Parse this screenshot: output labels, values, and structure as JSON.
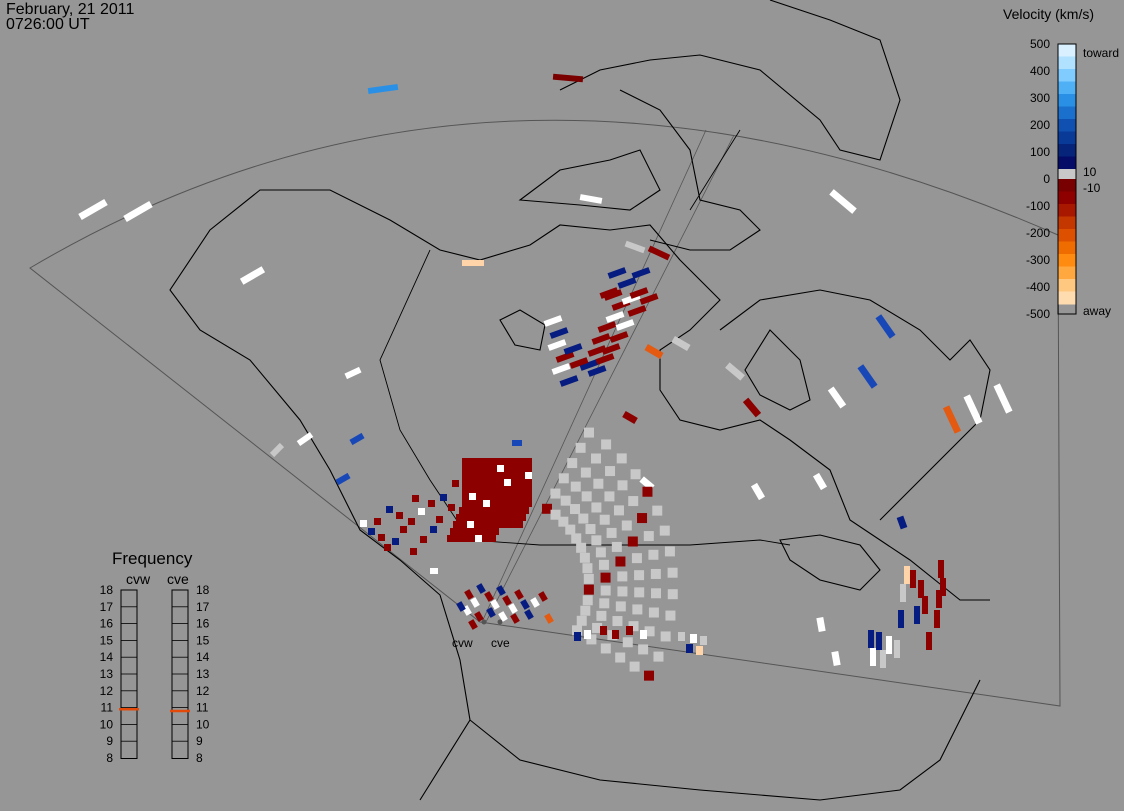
{
  "header": {
    "date": "February, 21 2011",
    "time": "0726:00 UT"
  },
  "velocity_legend": {
    "title": "Velocity (km/s)",
    "ticks": [
      "500",
      "400",
      "300",
      "200",
      "100",
      "0",
      "-100",
      "-200",
      "-300",
      "-400",
      "-500"
    ],
    "toward_label": "toward",
    "away_label": "away",
    "pos_threshold": "10",
    "neg_threshold": "-10",
    "toward_colors": [
      "#d8f0ff",
      "#b0e2ff",
      "#80ccff",
      "#50b0f5",
      "#2a90e6",
      "#1a70cc",
      "#1050b0",
      "#0a3a98",
      "#06247a",
      "#040c68"
    ],
    "away_colors": [
      "#780000",
      "#8e0000",
      "#a81800",
      "#c43800",
      "#dc5000",
      "#ee6c00",
      "#ff8c10",
      "#ffa840",
      "#ffc880",
      "#ffdcb0"
    ],
    "ground_scatter_color": "#c8c8c8"
  },
  "frequency_panel": {
    "title": "Frequency",
    "radars": [
      "cvw",
      "cve"
    ],
    "scale": [
      "18",
      "17",
      "16",
      "15",
      "14",
      "13",
      "12",
      "11",
      "10",
      "9",
      "8"
    ],
    "cvw_freq_mhz": 10.9,
    "cve_freq_mhz": 10.8,
    "marker_color": "#e34a0a"
  },
  "map_labels": {
    "cvw": "cvw",
    "cve": "cve"
  }
}
